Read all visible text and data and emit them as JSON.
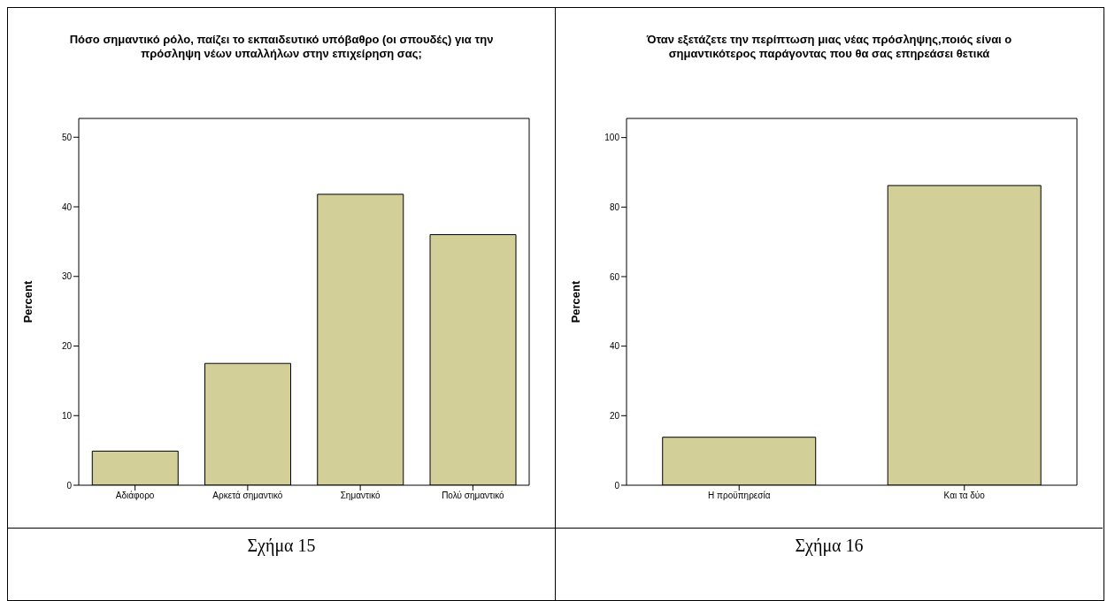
{
  "chart_data": [
    {
      "type": "bar",
      "title": "Πόσο σημαντικό ρόλο, παίζει το εκπαιδευτικό υπόβαθρο (οι σπουδές) για την πρόσληψη νέων υπαλλήλων στην επιχείρηση σας;",
      "ylabel": "Percent",
      "categories": [
        "Αδιάφορο",
        "Αρκετά σημαντικό",
        "Σημαντικό",
        "Πολύ σημαντικό"
      ],
      "values": [
        4.9,
        17.5,
        41.8,
        36.0
      ],
      "color": "#d3cf98",
      "ylim": [
        0,
        52.7
      ],
      "yticks": [
        0,
        10,
        20,
        30,
        40,
        50
      ],
      "annotations": [
        "Σχήμα 15"
      ]
    },
    {
      "type": "bar",
      "title": "Όταν εξετάζετε την περίπτωση μιας νέας πρόσληψης,ποιός είναι ο σημαντικότερος παράγοντας που θα σας επηρεάσει θετικά",
      "ylabel": "Percent",
      "categories": [
        "Η προϋπηρεσία",
        "Και τα δύο"
      ],
      "values": [
        13.8,
        86.2
      ],
      "color": "#d3cf98",
      "ylim": [
        0,
        105.5
      ],
      "yticks": [
        0,
        20,
        40,
        60,
        80,
        100
      ],
      "annotations": [
        "Σχήμα 16"
      ]
    }
  ]
}
